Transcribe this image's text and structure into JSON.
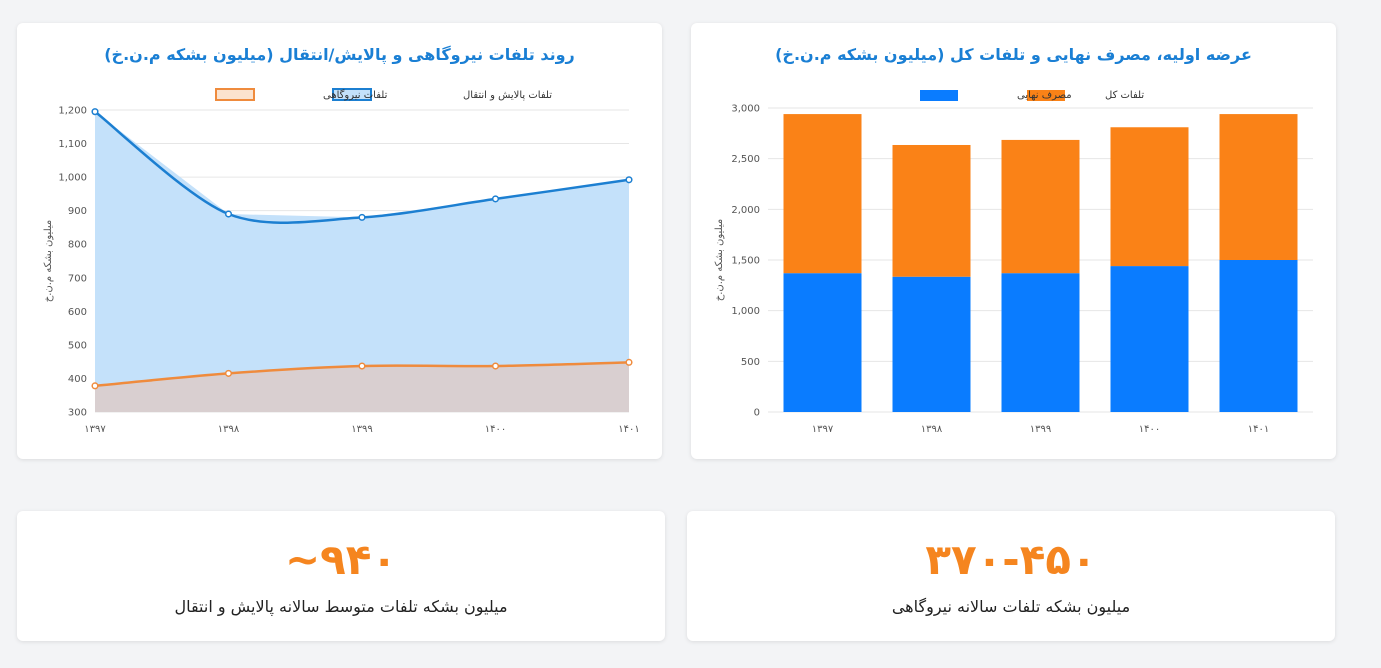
{
  "colors": {
    "blue": "#0a7cff",
    "orange": "#fa8217",
    "line_blue": "#1c7fd1",
    "area_blue_fill": "#c4e1fa",
    "line_orange": "#ef8b3d",
    "area_orange_fill": "#d9cfd0",
    "title": "#1a7fd4",
    "stat": "#f5851f"
  },
  "chart_data": [
    {
      "type": "area",
      "title": "روند تلفات نیروگاهی و پالایش/انتقال (میلیون بشکه م.ن.خ)",
      "ylabel": "میلیون بشکه م.ن.خ",
      "xlabel": "",
      "categories": [
        "۱۳۹۷",
        "۱۳۹۸",
        "۱۳۹۹",
        "۱۴۰۰",
        "۱۴۰۱"
      ],
      "ylim": [
        300,
        1200
      ],
      "yticks": [
        300,
        400,
        500,
        600,
        700,
        800,
        900,
        1000,
        1100,
        1200
      ],
      "ytick_labels": [
        "300",
        "400",
        "500",
        "600",
        "700",
        "800",
        "900",
        "1,000",
        "1,100",
        "1,200"
      ],
      "grid": true,
      "legend_placement": "top",
      "series": [
        {
          "name": "تلفات پالایش و انتقال",
          "values": [
            1195,
            890,
            880,
            935,
            992
          ]
        },
        {
          "name": "تلفات نیروگاهی",
          "values": [
            378,
            415,
            437,
            437,
            448
          ]
        }
      ]
    },
    {
      "type": "bar",
      "stacked": true,
      "title": "عرضه اولیه، مصرف نهایی و تلفات کل (میلیون بشکه م.ن.خ)",
      "ylabel": "میلیون بشکه م.ن.خ",
      "xlabel": "",
      "categories": [
        "۱۳۹۷",
        "۱۳۹۸",
        "۱۳۹۹",
        "۱۴۰۰",
        "۱۴۰۱"
      ],
      "ylim": [
        0,
        3000
      ],
      "yticks": [
        0,
        500,
        1000,
        1500,
        2000,
        2500,
        3000
      ],
      "ytick_labels": [
        "0",
        "500",
        "1,000",
        "1,500",
        "2,000",
        "2,500",
        "3,000"
      ],
      "grid": true,
      "legend_placement": "top",
      "series": [
        {
          "name": "مصرف نهایی",
          "values": [
            1370,
            1335,
            1370,
            1440,
            1500
          ]
        },
        {
          "name": "تلفات کل",
          "values": [
            1570,
            1300,
            1315,
            1370,
            1440
          ]
        }
      ]
    }
  ],
  "stats": {
    "left": {
      "value": "۹۴۰~",
      "label": "میلیون بشکه تلفات متوسط سالانه پالایش و انتقال"
    },
    "right": {
      "value": "۳۷۰-۴۵۰",
      "label": "میلیون بشکه تلفات سالانه نیروگاهی"
    }
  }
}
